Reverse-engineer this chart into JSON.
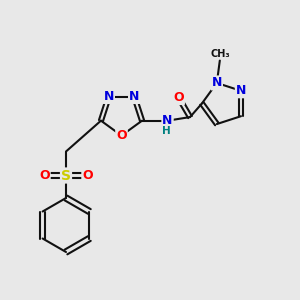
{
  "bg_color": "#e8e8e8",
  "fig_size": [
    3.0,
    3.0
  ],
  "dpi": 100,
  "atom_colors": {
    "N": "#0000dd",
    "O": "#ff0000",
    "S": "#cccc00",
    "H": "#008080",
    "default": "#111111"
  },
  "bond_color": "#111111",
  "bond_width": 1.5,
  "font_size_atom": 9,
  "font_size_small": 7.5
}
